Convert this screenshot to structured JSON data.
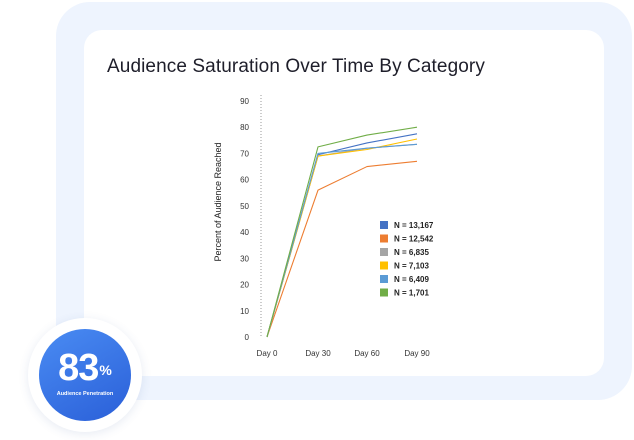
{
  "colors": {
    "frame": "#eef4fe",
    "card": "#ffffff",
    "badge_start": "#4a8cf3",
    "badge_end": "#2a5fd8"
  },
  "badge": {
    "value": "83",
    "unit": "%",
    "label": "Audience Penetration"
  },
  "chart_data": {
    "type": "line",
    "title": "Audience Saturation Over Time By Category",
    "xlabel": "",
    "ylabel": "Percent of Audience Reached",
    "categories": [
      "Day 0",
      "Day 30",
      "Day 60",
      "Day 90"
    ],
    "ylim": [
      0,
      90
    ],
    "yticks": [
      0,
      10,
      20,
      30,
      40,
      50,
      60,
      70,
      80,
      90
    ],
    "legend_position": "center-right",
    "series": [
      {
        "name": "N = 13,167",
        "color": "#4472c4",
        "values": [
          0,
          69.5,
          74,
          77.5
        ]
      },
      {
        "name": "N = 12,542",
        "color": "#ed7d31",
        "values": [
          0,
          56,
          65,
          67
        ]
      },
      {
        "name": "N = 6,835",
        "color": "#a5a5a5",
        "values": [
          0,
          69,
          72,
          73.5
        ]
      },
      {
        "name": "N = 7,103",
        "color": "#ffc000",
        "values": [
          0,
          69,
          71.5,
          75.5
        ]
      },
      {
        "name": "N = 6,409",
        "color": "#5b9bd5",
        "values": [
          0,
          70,
          72,
          73.5
        ]
      },
      {
        "name": "N = 1,701",
        "color": "#70ad47",
        "values": [
          0,
          72.5,
          77,
          80
        ]
      }
    ]
  }
}
